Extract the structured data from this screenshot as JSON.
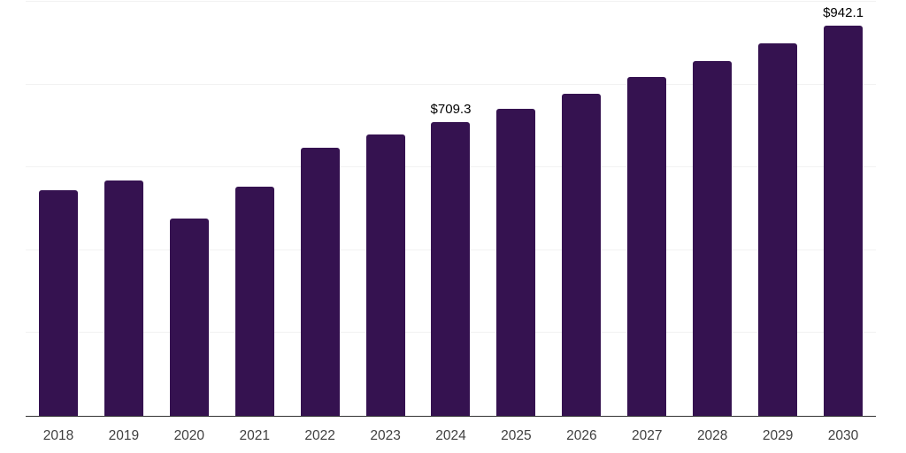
{
  "chart_data": {
    "type": "bar",
    "title": "",
    "xlabel": "",
    "ylabel": "",
    "categories": [
      "2018",
      "2019",
      "2020",
      "2021",
      "2022",
      "2023",
      "2024",
      "2025",
      "2026",
      "2027",
      "2028",
      "2029",
      "2030"
    ],
    "values": [
      545.0,
      567.5,
      476.0,
      554.5,
      648.5,
      680.0,
      709.3,
      742.0,
      778.0,
      818.0,
      856.5,
      899.0,
      942.1
    ],
    "value_labels": [
      {
        "category": "2024",
        "text": "$709.3"
      },
      {
        "category": "2030",
        "text": "$942.1"
      }
    ],
    "ylim": [
      0,
      1000
    ],
    "gridline_step": 200,
    "grid": true,
    "legend": "none"
  },
  "style": {
    "bar_color": "#351250",
    "axis_line_color": "#333333",
    "gridline_color": "#f2f2f2",
    "x_label_color": "#404040",
    "value_label_color": "#000000",
    "background_color": "#ffffff"
  }
}
